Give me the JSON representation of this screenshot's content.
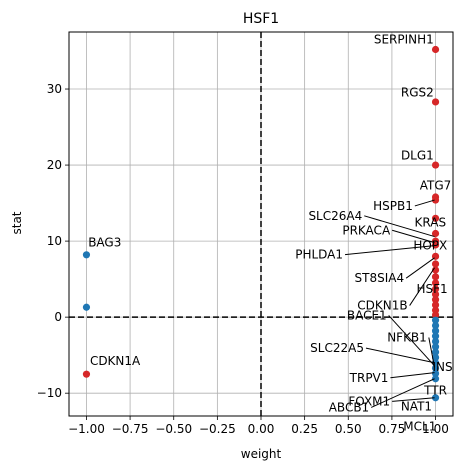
{
  "chart_data": {
    "type": "scatter",
    "title": "HSF1",
    "xlabel": "weight",
    "ylabel": "stat",
    "xlim": [
      -1.1,
      1.1
    ],
    "ylim": [
      -13,
      37.5
    ],
    "xticks": [
      -1.0,
      -0.75,
      -0.5,
      -0.25,
      0.0,
      0.25,
      0.5,
      0.75,
      1.0
    ],
    "xtick_labels": [
      "−1.00",
      "−0.75",
      "−0.50",
      "−0.25",
      "0.00",
      "0.25",
      "0.50",
      "0.75",
      "1.00"
    ],
    "yticks": [
      -10,
      0,
      10,
      20,
      30
    ],
    "ytick_labels": [
      "−10",
      "0",
      "10",
      "20",
      "30"
    ],
    "grid": true,
    "reference_lines": {
      "x": 0,
      "y": 0,
      "style": "dashed"
    },
    "colors": {
      "positive": "#d62728",
      "negative": "#1f77b4"
    },
    "points": [
      {
        "x": 1.0,
        "y": 35.2,
        "c": "positive"
      },
      {
        "x": 1.0,
        "y": 28.3,
        "c": "positive"
      },
      {
        "x": 1.0,
        "y": 20.0,
        "c": "positive"
      },
      {
        "x": 1.0,
        "y": 15.8,
        "c": "positive"
      },
      {
        "x": 1.0,
        "y": 15.4,
        "c": "positive"
      },
      {
        "x": 1.0,
        "y": 13.0,
        "c": "positive"
      },
      {
        "x": 1.0,
        "y": 11.0,
        "c": "positive"
      },
      {
        "x": 1.0,
        "y": 10.0,
        "c": "positive"
      },
      {
        "x": 1.0,
        "y": 9.5,
        "c": "positive"
      },
      {
        "x": 1.0,
        "y": 8.0,
        "c": "positive"
      },
      {
        "x": 1.0,
        "y": 7.0,
        "c": "positive"
      },
      {
        "x": 1.0,
        "y": 6.2,
        "c": "positive"
      },
      {
        "x": 1.0,
        "y": 5.3,
        "c": "positive"
      },
      {
        "x": 1.0,
        "y": 4.5,
        "c": "positive"
      },
      {
        "x": 1.0,
        "y": 3.7,
        "c": "positive"
      },
      {
        "x": 1.0,
        "y": 3.0,
        "c": "positive"
      },
      {
        "x": 1.0,
        "y": 2.3,
        "c": "positive"
      },
      {
        "x": 1.0,
        "y": 1.6,
        "c": "positive"
      },
      {
        "x": 1.0,
        "y": 0.9,
        "c": "positive"
      },
      {
        "x": 1.0,
        "y": 0.3,
        "c": "positive"
      },
      {
        "x": 1.0,
        "y": -0.4,
        "c": "negative"
      },
      {
        "x": 1.0,
        "y": -1.1,
        "c": "negative"
      },
      {
        "x": 1.0,
        "y": -1.8,
        "c": "negative"
      },
      {
        "x": 1.0,
        "y": -2.5,
        "c": "negative"
      },
      {
        "x": 1.0,
        "y": -3.2,
        "c": "negative"
      },
      {
        "x": 1.0,
        "y": -3.9,
        "c": "negative"
      },
      {
        "x": 1.0,
        "y": -4.6,
        "c": "negative"
      },
      {
        "x": 1.0,
        "y": -5.3,
        "c": "negative"
      },
      {
        "x": 1.0,
        "y": -6.0,
        "c": "negative"
      },
      {
        "x": 1.0,
        "y": -6.7,
        "c": "negative"
      },
      {
        "x": 1.0,
        "y": -7.4,
        "c": "negative"
      },
      {
        "x": 1.0,
        "y": -8.1,
        "c": "negative"
      },
      {
        "x": 1.0,
        "y": -10.6,
        "c": "negative"
      },
      {
        "x": -1.0,
        "y": 8.2,
        "c": "negative"
      },
      {
        "x": -1.0,
        "y": 1.3,
        "c": "negative"
      },
      {
        "x": -1.0,
        "y": -7.5,
        "c": "positive"
      }
    ],
    "annotations": [
      {
        "text": "SERPINH1",
        "x": 1.0,
        "y": 35.2,
        "tx": 0.99,
        "ty": 36.0,
        "anchor": "end",
        "arrow": false
      },
      {
        "text": "RGS2",
        "x": 1.0,
        "y": 28.3,
        "tx": 0.99,
        "ty": 29.0,
        "anchor": "end",
        "arrow": false
      },
      {
        "text": "DLG1",
        "x": 1.0,
        "y": 20.0,
        "tx": 0.99,
        "ty": 20.7,
        "anchor": "end",
        "arrow": false
      },
      {
        "text": "ATG7",
        "x": 1.0,
        "y": 15.8,
        "tx": 1.0,
        "ty": 16.8,
        "anchor": "middle",
        "arrow": false
      },
      {
        "text": "HSPB1",
        "x": 1.0,
        "y": 15.4,
        "tx": 0.87,
        "ty": 14.1,
        "anchor": "end",
        "arrow": true
      },
      {
        "text": "SLC26A4",
        "x": 1.0,
        "y": 10.6,
        "tx": 0.58,
        "ty": 12.8,
        "anchor": "end",
        "arrow": true
      },
      {
        "text": "KRAS",
        "x": 1.0,
        "y": 11.0,
        "tx": 0.97,
        "ty": 11.9,
        "anchor": "middle",
        "arrow": false
      },
      {
        "text": "PRKACA",
        "x": 1.0,
        "y": 9.8,
        "tx": 0.74,
        "ty": 10.9,
        "anchor": "end",
        "arrow": true
      },
      {
        "text": "HOPX",
        "x": 1.0,
        "y": 9.2,
        "tx": 0.97,
        "ty": 8.9,
        "anchor": "middle",
        "arrow": false
      },
      {
        "text": "PHLDA1",
        "x": 1.0,
        "y": 9.4,
        "tx": 0.47,
        "ty": 7.7,
        "anchor": "end",
        "arrow": true
      },
      {
        "text": "ST8SIA4",
        "x": 1.0,
        "y": 7.8,
        "tx": 0.82,
        "ty": 4.6,
        "anchor": "end",
        "arrow": true
      },
      {
        "text": "HSF1",
        "x": 1.0,
        "y": 4.8,
        "tx": 0.98,
        "ty": 3.2,
        "anchor": "middle",
        "arrow": false
      },
      {
        "text": "CDKN1B",
        "x": 1.0,
        "y": 6.5,
        "tx": 0.84,
        "ty": 1.0,
        "anchor": "end",
        "arrow": true
      },
      {
        "text": "BACE1",
        "x": 1.0,
        "y": -6.4,
        "tx": 0.72,
        "ty": -0.3,
        "anchor": "end",
        "arrow": true
      },
      {
        "text": "NFKB1",
        "x": 1.0,
        "y": -6.6,
        "tx": 0.95,
        "ty": -3.2,
        "anchor": "end",
        "arrow": true
      },
      {
        "text": "SLC22A5",
        "x": 1.0,
        "y": -6.0,
        "tx": 0.59,
        "ty": -4.6,
        "anchor": "end",
        "arrow": true
      },
      {
        "text": "INS",
        "x": 1.0,
        "y": -6.3,
        "tx": 1.04,
        "ty": -7.1,
        "anchor": "middle",
        "arrow": false
      },
      {
        "text": "TRPV1",
        "x": 1.0,
        "y": -7.3,
        "tx": 0.73,
        "ty": -8.5,
        "anchor": "end",
        "arrow": true
      },
      {
        "text": "NAT1",
        "x": 1.0,
        "y": -7.7,
        "tx": 0.98,
        "ty": -12.3,
        "anchor": "end",
        "arrow": false,
        "ty2": -12.2
      },
      {
        "text": "ABCB1",
        "x": 1.0,
        "y": -8.1,
        "tx": 0.62,
        "ty": -12.4,
        "anchor": "end",
        "arrow": true
      },
      {
        "text": "TTR",
        "x": 1.0,
        "y": -8.4,
        "tx": 1.0,
        "ty": -10.2,
        "anchor": "middle",
        "arrow": false
      },
      {
        "text": "FOXM1",
        "x": 1.0,
        "y": -10.6,
        "tx": 0.74,
        "ty": -11.6,
        "anchor": "end",
        "arrow": true
      },
      {
        "text": "MCL1",
        "x": 1.0,
        "y": -10.6,
        "tx": 0.91,
        "ty": -14.9,
        "anchor": "middle",
        "arrow": false
      },
      {
        "text": "BAG3",
        "x": -1.0,
        "y": 8.2,
        "tx": -0.99,
        "ty": 9.3,
        "anchor": "start",
        "arrow": false
      },
      {
        "text": "CDKN1A",
        "x": -1.0,
        "y": -7.5,
        "tx": -0.98,
        "ty": -6.3,
        "anchor": "start",
        "arrow": false
      }
    ]
  }
}
